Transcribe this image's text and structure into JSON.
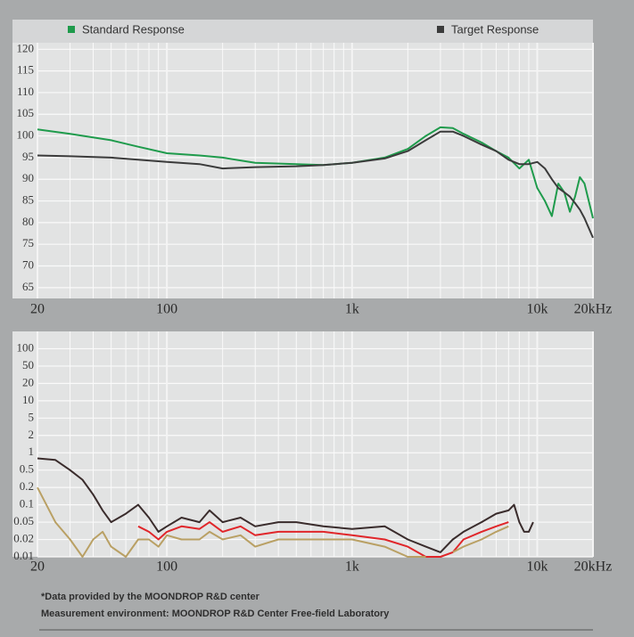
{
  "chart_data": [
    {
      "type": "line",
      "xscale": "log",
      "grid": true,
      "x": [
        20,
        30,
        50,
        70,
        100,
        150,
        200,
        300,
        500,
        700,
        1000,
        1500,
        2000,
        2500,
        3000,
        3500,
        4000,
        5000,
        6000,
        7000,
        8000,
        9000,
        10000,
        11000,
        12000,
        13000,
        14000,
        15000,
        16000,
        17000,
        18000,
        20000
      ],
      "series": [
        {
          "name": "Standard Response",
          "color": "#1f9b4c",
          "values": [
            101.5,
            100.5,
            99,
            97.5,
            96,
            95.5,
            95,
            93.8,
            93.5,
            93.3,
            93.8,
            95,
            97,
            100,
            102,
            101.8,
            100.5,
            98.5,
            96.5,
            95,
            92.5,
            94.5,
            88,
            85,
            81.5,
            89,
            87,
            82.5,
            86,
            90.5,
            89,
            81
          ]
        },
        {
          "name": "Target Response",
          "color": "#3b3b3b",
          "values": [
            95.5,
            95.3,
            95,
            94.5,
            94,
            93.5,
            92.5,
            92.8,
            93,
            93.3,
            93.8,
            94.8,
            96.5,
            99,
            101,
            101,
            100,
            98,
            96.5,
            94.5,
            93.5,
            93.5,
            94,
            92.5,
            90,
            88,
            87,
            86,
            84.5,
            83,
            81,
            76.5
          ]
        }
      ],
      "xlim": [
        20,
        20000
      ],
      "xticks": [
        20,
        100,
        {
          "value": 1000,
          "label": "1k"
        },
        {
          "value": 10000,
          "label": "10k"
        },
        {
          "value": 20000,
          "label": "20kHz"
        }
      ],
      "x_minor_ticks": [
        30,
        40,
        50,
        60,
        70,
        80,
        90,
        200,
        300,
        400,
        500,
        600,
        700,
        800,
        900,
        2000,
        3000,
        4000,
        5000,
        6000,
        7000,
        8000,
        9000
      ],
      "ylim": [
        62.5,
        121.5
      ],
      "yticks": [
        65,
        70,
        75,
        80,
        85,
        90,
        95,
        100,
        105,
        110,
        115,
        120
      ]
    },
    {
      "type": "line",
      "xscale": "log",
      "yscale": "log",
      "grid": true,
      "x": [
        20,
        25,
        30,
        35,
        40,
        45,
        50,
        60,
        70,
        80,
        90,
        100,
        120,
        150,
        170,
        200,
        250,
        300,
        400,
        500,
        700,
        1000,
        1500,
        2000,
        2500,
        3000,
        3500,
        4000,
        5000,
        6000,
        7000,
        7500,
        8000,
        8500,
        9000,
        9500
      ],
      "series": [
        {
          "color": "#3a2c2c",
          "values": [
            0.8,
            0.75,
            0.5,
            0.3,
            0.15,
            0.08,
            0.05,
            0.07,
            0.1,
            0.06,
            0.03,
            0.04,
            0.06,
            0.05,
            0.08,
            0.05,
            0.06,
            0.04,
            0.05,
            0.05,
            0.04,
            0.035,
            0.04,
            0.02,
            0.015,
            0.012,
            0.02,
            0.03,
            0.05,
            0.07,
            0.08,
            0.1,
            0.05,
            0.03,
            0.03,
            0.05
          ]
        },
        {
          "color": "#e0262a",
          "values": [
            null,
            null,
            null,
            null,
            null,
            null,
            null,
            null,
            0.04,
            0.03,
            0.02,
            0.03,
            0.04,
            0.035,
            0.05,
            0.03,
            0.04,
            0.025,
            0.03,
            0.03,
            0.03,
            0.025,
            0.02,
            0.015,
            0.01,
            0.01,
            0.012,
            0.02,
            0.03,
            0.04,
            0.05,
            null,
            null,
            null,
            null,
            null
          ]
        },
        {
          "color": "#b9a064",
          "values": [
            0.2,
            0.05,
            0.02,
            0.01,
            0.02,
            0.03,
            0.015,
            0.01,
            0.02,
            0.02,
            0.015,
            0.025,
            0.02,
            0.02,
            0.03,
            0.02,
            0.025,
            0.015,
            0.02,
            0.02,
            0.02,
            0.02,
            0.015,
            0.01,
            0.01,
            null,
            0.012,
            0.015,
            0.02,
            0.03,
            0.04,
            null,
            null,
            null,
            null,
            null
          ]
        }
      ],
      "xlim": [
        20,
        20000
      ],
      "xticks": [
        20,
        100,
        {
          "value": 1000,
          "label": "1k"
        },
        {
          "value": 10000,
          "label": "10k"
        },
        {
          "value": 20000,
          "label": "20kHz"
        }
      ],
      "x_minor_ticks": [
        30,
        40,
        50,
        60,
        70,
        80,
        90,
        200,
        300,
        400,
        500,
        600,
        700,
        800,
        900,
        2000,
        3000,
        4000,
        5000,
        6000,
        7000,
        8000,
        9000
      ],
      "ylim": [
        0.01,
        200
      ],
      "yticks": [
        0.01,
        0.02,
        0.05,
        0.1,
        0.2,
        0.5,
        1,
        2,
        5,
        10,
        20,
        50,
        100
      ]
    }
  ],
  "footnotes": [
    "*Data provided by the MOONDROP R&D center",
    "Measurement environment: MOONDROP R&D Center Free-field Laboratory"
  ]
}
